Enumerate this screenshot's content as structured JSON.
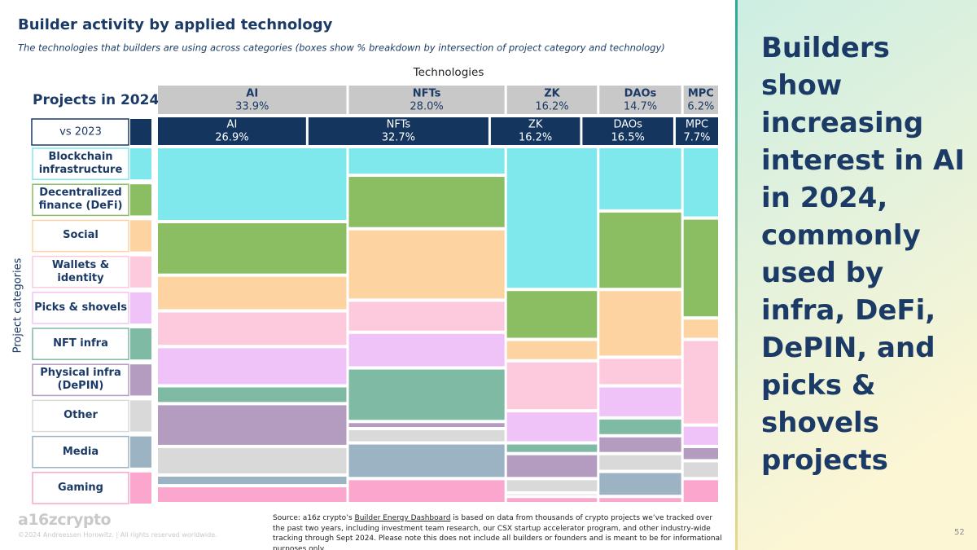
{
  "chart_data": {
    "type": "mekko",
    "title": "Builder activity by applied technology",
    "subtitle": "The technologies that builders are using across categories (boxes show % breakdown by intersection of project category and technology)",
    "x_label": "Technologies",
    "y_label": "Project categories",
    "row_label": "Projects in 2024",
    "compare_label": "vs 2023",
    "technologies": [
      "AI",
      "NFTs",
      "ZK",
      "DAOs",
      "MPC"
    ],
    "values": [
      33.9,
      28.0,
      16.2,
      14.7,
      6.2
    ],
    "value_labels": [
      "33.9%",
      "28.0%",
      "16.2%",
      "14.7%",
      "6.2%"
    ],
    "values_2023": [
      26.9,
      32.7,
      16.2,
      16.5,
      7.7
    ],
    "value_labels_2023": [
      "26.9%",
      "32.7%",
      "16.2%",
      "16.5%",
      "7.7%"
    ],
    "series": [
      {
        "name": "Blockchain infrastructure",
        "color": "#7ee8ec",
        "values": [
          21,
          8,
          40,
          18,
          20
        ]
      },
      {
        "name": "Decentralized finance (DeFi)",
        "color": "#8bbd62",
        "values": [
          15,
          15,
          14,
          22,
          28
        ]
      },
      {
        "name": "Social",
        "color": "#fdd3a2",
        "values": [
          10,
          20,
          6,
          19,
          6
        ]
      },
      {
        "name": "Wallets & identity",
        "color": "#fdc9dc",
        "values": [
          10,
          9,
          14,
          8,
          24
        ]
      },
      {
        "name": "Picks & shovels",
        "color": "#f0c3f8",
        "values": [
          11,
          10,
          9,
          9,
          6
        ]
      },
      {
        "name": "NFT infra",
        "color": "#7fbaa5",
        "values": [
          5,
          15,
          3,
          5,
          0
        ]
      },
      {
        "name": "Physical infra (DePIN)",
        "color": "#b39cc0",
        "values": [
          12,
          2,
          7,
          5,
          4
        ]
      },
      {
        "name": "Other",
        "color": "#d9d9d9",
        "values": [
          8,
          4,
          4,
          5,
          5
        ]
      },
      {
        "name": "Media",
        "color": "#9cb3c4",
        "values": [
          3,
          10,
          1,
          7,
          0
        ]
      },
      {
        "name": "Gaming",
        "color": "#fba6cc",
        "values": [
          5,
          7,
          2,
          2,
          7
        ]
      }
    ]
  },
  "headline": "Builders show increasing interest in AI in 2024, commonly used by infra, DeFi, DePIN, and picks & shovels projects",
  "source": {
    "prefix": "Source: a16z crypto’s",
    "link": "Builder Energy Dashboard",
    "suffix": "is based on data from thousands of crypto projects we’ve tracked over the past two years, including investment team research, our CSX startup accelerator program, and other industry-wide tracking through Sept 2024. Please note this does not include all builders or founders and is meant to be for informational purposes only."
  },
  "footer": {
    "logo": "a16zcrypto",
    "copyright": "©2024 Andreessen Horowitz. | All rights reserved worldwide.",
    "page": "52"
  }
}
